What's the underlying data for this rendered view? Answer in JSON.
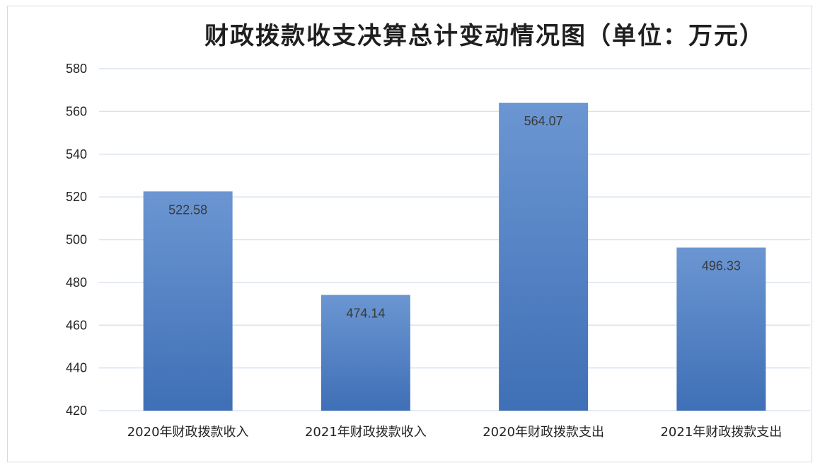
{
  "chart_data": {
    "type": "bar",
    "title": "财政拨款收支决算总计变动情况图（单位：万元）",
    "categories": [
      "2020年财政拨款收入",
      "2021年财政拨款收入",
      "2020年财政拨款支出",
      "2021年财政拨款支出"
    ],
    "values": [
      522.58,
      474.14,
      564.07,
      496.33
    ],
    "data_labels": [
      "522.58",
      "474.14",
      "564.07",
      "496.33"
    ],
    "ylim": [
      420,
      580
    ],
    "yticks": [
      "420",
      "440",
      "460",
      "480",
      "500",
      "520",
      "540",
      "560",
      "580"
    ],
    "grid": true,
    "legend": "none",
    "colors": {
      "bar_top": "#6b96d2",
      "bar_bottom": "#3f6fb6",
      "grid": "#d9e3f0"
    }
  }
}
